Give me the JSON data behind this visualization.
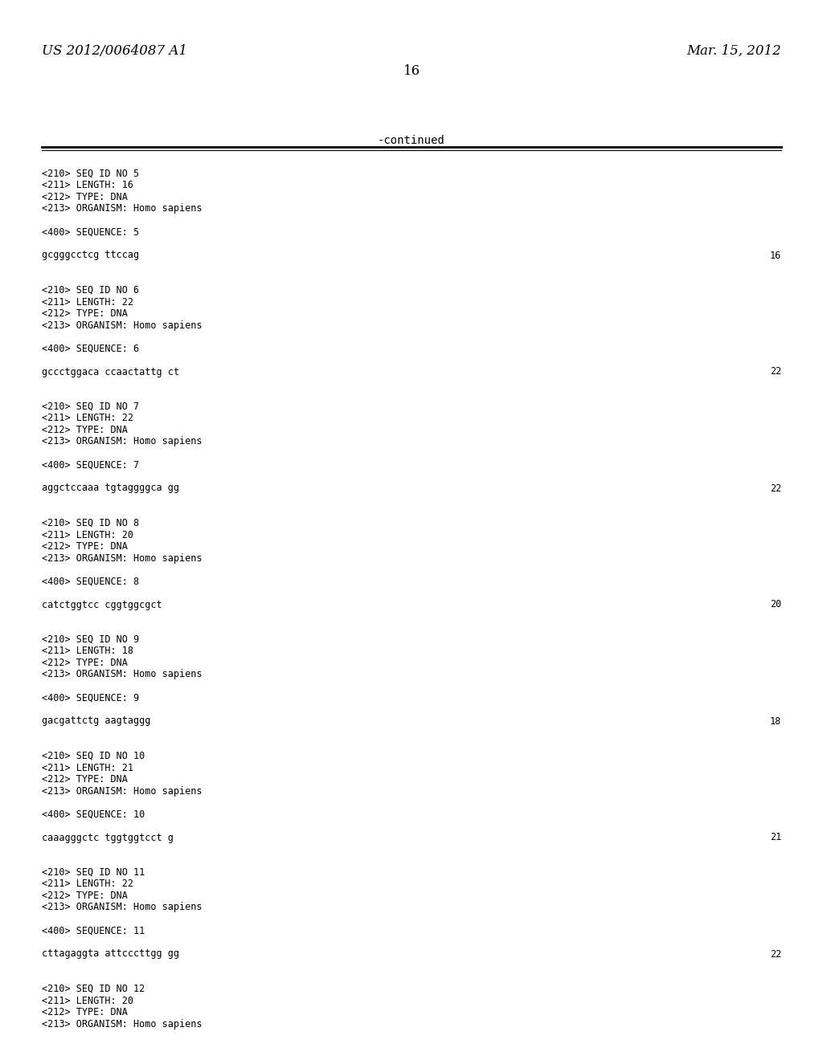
{
  "bg_color": "#ffffff",
  "header_left": "US 2012/0064087 A1",
  "header_right": "Mar. 15, 2012",
  "page_number": "16",
  "continued_text": "-continued",
  "body_lines": [
    {
      "text": "<210> SEQ ID NO 5",
      "num": null
    },
    {
      "text": "<211> LENGTH: 16",
      "num": null
    },
    {
      "text": "<212> TYPE: DNA",
      "num": null
    },
    {
      "text": "<213> ORGANISM: Homo sapiens",
      "num": null
    },
    {
      "text": "",
      "num": null
    },
    {
      "text": "<400> SEQUENCE: 5",
      "num": null
    },
    {
      "text": "",
      "num": null
    },
    {
      "text": "gcgggcctcg ttccag",
      "num": "16"
    },
    {
      "text": "",
      "num": null
    },
    {
      "text": "",
      "num": null
    },
    {
      "text": "<210> SEQ ID NO 6",
      "num": null
    },
    {
      "text": "<211> LENGTH: 22",
      "num": null
    },
    {
      "text": "<212> TYPE: DNA",
      "num": null
    },
    {
      "text": "<213> ORGANISM: Homo sapiens",
      "num": null
    },
    {
      "text": "",
      "num": null
    },
    {
      "text": "<400> SEQUENCE: 6",
      "num": null
    },
    {
      "text": "",
      "num": null
    },
    {
      "text": "gccctggaca ccaactattg ct",
      "num": "22"
    },
    {
      "text": "",
      "num": null
    },
    {
      "text": "",
      "num": null
    },
    {
      "text": "<210> SEQ ID NO 7",
      "num": null
    },
    {
      "text": "<211> LENGTH: 22",
      "num": null
    },
    {
      "text": "<212> TYPE: DNA",
      "num": null
    },
    {
      "text": "<213> ORGANISM: Homo sapiens",
      "num": null
    },
    {
      "text": "",
      "num": null
    },
    {
      "text": "<400> SEQUENCE: 7",
      "num": null
    },
    {
      "text": "",
      "num": null
    },
    {
      "text": "aggctccaaa tgtaggggca gg",
      "num": "22"
    },
    {
      "text": "",
      "num": null
    },
    {
      "text": "",
      "num": null
    },
    {
      "text": "<210> SEQ ID NO 8",
      "num": null
    },
    {
      "text": "<211> LENGTH: 20",
      "num": null
    },
    {
      "text": "<212> TYPE: DNA",
      "num": null
    },
    {
      "text": "<213> ORGANISM: Homo sapiens",
      "num": null
    },
    {
      "text": "",
      "num": null
    },
    {
      "text": "<400> SEQUENCE: 8",
      "num": null
    },
    {
      "text": "",
      "num": null
    },
    {
      "text": "catctggtcc cggtggcgct",
      "num": "20"
    },
    {
      "text": "",
      "num": null
    },
    {
      "text": "",
      "num": null
    },
    {
      "text": "<210> SEQ ID NO 9",
      "num": null
    },
    {
      "text": "<211> LENGTH: 18",
      "num": null
    },
    {
      "text": "<212> TYPE: DNA",
      "num": null
    },
    {
      "text": "<213> ORGANISM: Homo sapiens",
      "num": null
    },
    {
      "text": "",
      "num": null
    },
    {
      "text": "<400> SEQUENCE: 9",
      "num": null
    },
    {
      "text": "",
      "num": null
    },
    {
      "text": "gacgattctg aagtaggg",
      "num": "18"
    },
    {
      "text": "",
      "num": null
    },
    {
      "text": "",
      "num": null
    },
    {
      "text": "<210> SEQ ID NO 10",
      "num": null
    },
    {
      "text": "<211> LENGTH: 21",
      "num": null
    },
    {
      "text": "<212> TYPE: DNA",
      "num": null
    },
    {
      "text": "<213> ORGANISM: Homo sapiens",
      "num": null
    },
    {
      "text": "",
      "num": null
    },
    {
      "text": "<400> SEQUENCE: 10",
      "num": null
    },
    {
      "text": "",
      "num": null
    },
    {
      "text": "caaagggctc tggtggtcct g",
      "num": "21"
    },
    {
      "text": "",
      "num": null
    },
    {
      "text": "",
      "num": null
    },
    {
      "text": "<210> SEQ ID NO 11",
      "num": null
    },
    {
      "text": "<211> LENGTH: 22",
      "num": null
    },
    {
      "text": "<212> TYPE: DNA",
      "num": null
    },
    {
      "text": "<213> ORGANISM: Homo sapiens",
      "num": null
    },
    {
      "text": "",
      "num": null
    },
    {
      "text": "<400> SEQUENCE: 11",
      "num": null
    },
    {
      "text": "",
      "num": null
    },
    {
      "text": "cttagaggta attcccttgg gg",
      "num": "22"
    },
    {
      "text": "",
      "num": null
    },
    {
      "text": "",
      "num": null
    },
    {
      "text": "<210> SEQ ID NO 12",
      "num": null
    },
    {
      "text": "<211> LENGTH: 20",
      "num": null
    },
    {
      "text": "<212> TYPE: DNA",
      "num": null
    },
    {
      "text": "<213> ORGANISM: Homo sapiens",
      "num": null
    }
  ],
  "font_size_header": 12,
  "font_size_body": 8.5,
  "font_size_page": 12,
  "font_size_continued": 10
}
